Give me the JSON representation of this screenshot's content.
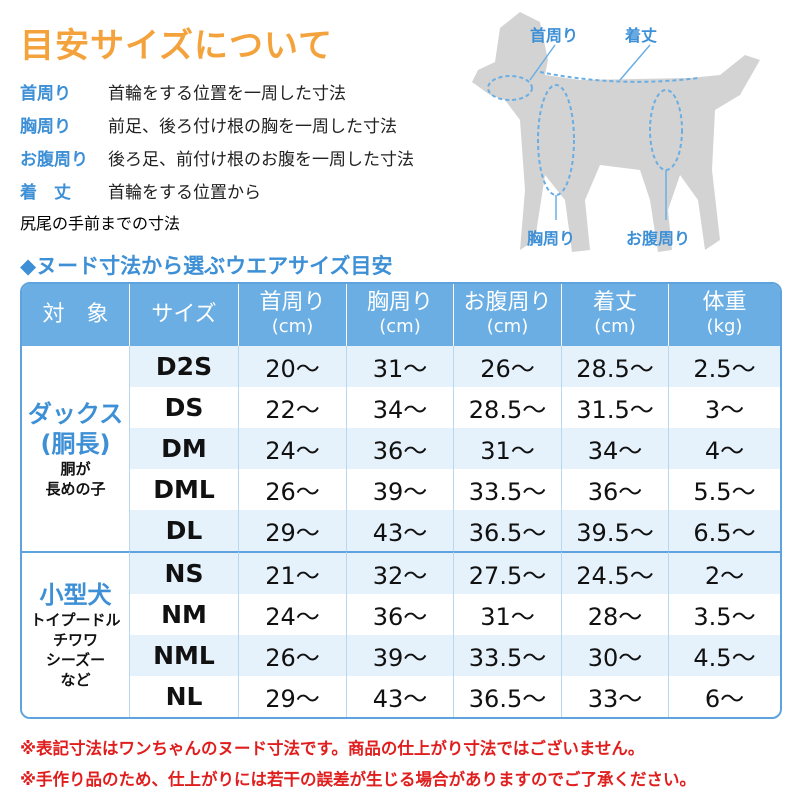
{
  "title": "目安サイズについて",
  "definitions": [
    {
      "term": "首周り",
      "desc": "首輪をする位置を一周した寸法"
    },
    {
      "term": "胸周り",
      "desc": "前足、後ろ付け根の胸を一周した寸法"
    },
    {
      "term": "お腹周り",
      "desc": "後ろ足、前付け根のお腹を一周した寸法"
    },
    {
      "term": "着　丈",
      "desc": "首輪をする位置から",
      "desc2": "尻尾の手前までの寸法"
    }
  ],
  "diagram": {
    "neck": "首周り",
    "length": "着丈",
    "chest": "胸周り",
    "belly": "お腹周り"
  },
  "subtitle": "◆ヌード寸法から選ぶウエアサイズ目安",
  "table": {
    "headers": [
      {
        "label": "対　象",
        "unit": ""
      },
      {
        "label": "サイズ",
        "unit": ""
      },
      {
        "label": "首周り",
        "unit": "(cm)"
      },
      {
        "label": "胸周り",
        "unit": "(cm)"
      },
      {
        "label": "お腹周り",
        "unit": "(cm)"
      },
      {
        "label": "着丈",
        "unit": "(cm)"
      },
      {
        "label": "体重",
        "unit": "(kg)"
      }
    ],
    "groups": [
      {
        "name": "ダックス",
        "name2": "(胴長)",
        "sub": "胴が",
        "sub2": "長めの子"
      },
      {
        "name": "小型犬",
        "sub": "トイプードル",
        "sub2": "チワワ",
        "sub3": "シーズー",
        "sub4": "など"
      }
    ],
    "rows": [
      [
        "D2S",
        "20〜",
        "31〜",
        "26〜",
        "28.5〜",
        "2.5〜"
      ],
      [
        "DS",
        "22〜",
        "34〜",
        "28.5〜",
        "31.5〜",
        "3〜"
      ],
      [
        "DM",
        "24〜",
        "36〜",
        "31〜",
        "34〜",
        "4〜"
      ],
      [
        "DML",
        "26〜",
        "39〜",
        "33.5〜",
        "36〜",
        "5.5〜"
      ],
      [
        "DL",
        "29〜",
        "43〜",
        "36.5〜",
        "39.5〜",
        "6.5〜"
      ],
      [
        "NS",
        "21〜",
        "32〜",
        "27.5〜",
        "24.5〜",
        "2〜"
      ],
      [
        "NM",
        "24〜",
        "36〜",
        "31〜",
        "28〜",
        "3.5〜"
      ],
      [
        "NML",
        "26〜",
        "39〜",
        "33.5〜",
        "30〜",
        "4.5〜"
      ],
      [
        "NL",
        "29〜",
        "43〜",
        "36.5〜",
        "33〜",
        "6〜"
      ]
    ]
  },
  "notes": [
    "※表記寸法はワンちゃんのヌード寸法です。商品の仕上がり寸法ではございません。",
    "※手作り品のため、仕上がりには若干の誤差が生じる場合がありますのでご了承ください。"
  ],
  "colors": {
    "title": "#f4a23c",
    "accent": "#3d8fd6",
    "header": "#6aaee3",
    "row_alt": "#e6f2fb",
    "note": "#e01e1e"
  }
}
